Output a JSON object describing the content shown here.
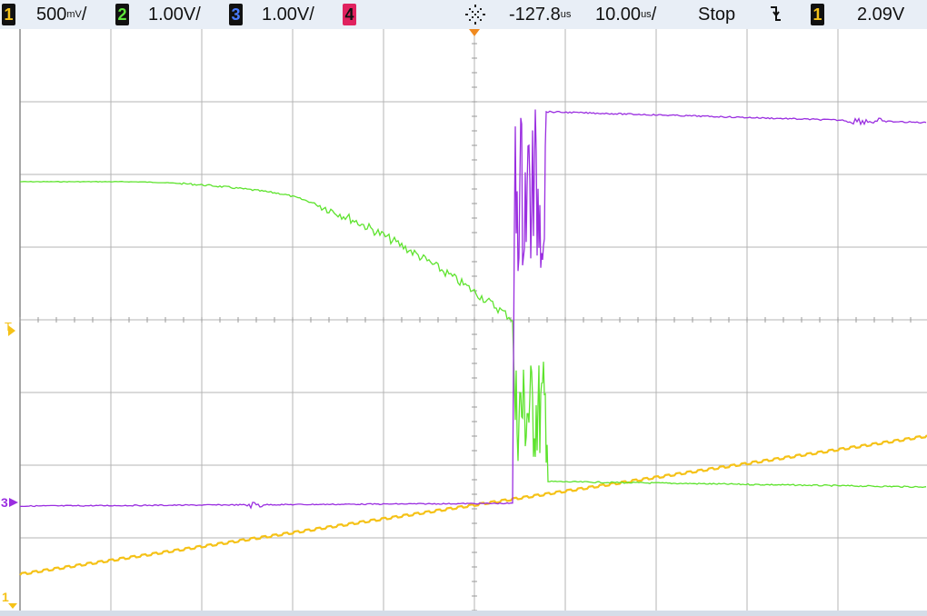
{
  "status_bar": {
    "ch1": {
      "num": "1",
      "scale": "500",
      "unit": "mV",
      "suffix": "/"
    },
    "ch2": {
      "num": "2",
      "scale": "1.00V/"
    },
    "ch3": {
      "num": "3",
      "scale": "1.00V/"
    },
    "ch4": {
      "num": "4"
    },
    "delay_icon": "acquisition-icon",
    "delay_value": "-127.8",
    "delay_unit": "us",
    "timebase_value": "10.00",
    "timebase_unit": "us",
    "timebase_suffix": "/",
    "run_state": "Stop",
    "trigger_slope_icon": "falling-edge-icon",
    "trigger_source": "1",
    "trigger_level": "2.09V"
  },
  "markers": {
    "trigger": "T",
    "ch3_ground": "3",
    "ch1_ground": "1"
  },
  "colors": {
    "ch1": "#f5c218",
    "ch2": "#5ee32e",
    "ch3": "#9a2ee0",
    "grid": "#b4b4b4",
    "background": "#ffffff"
  }
}
